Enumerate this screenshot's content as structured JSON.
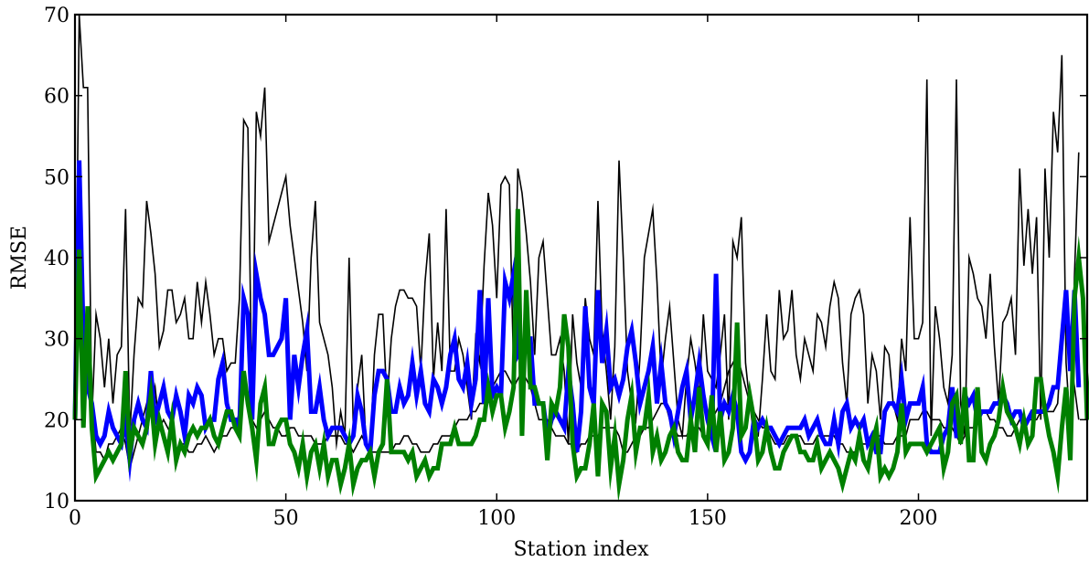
{
  "chart_data": {
    "type": "line",
    "title": "",
    "xlabel": "Station index",
    "ylabel": "RMSE",
    "xlim": [
      0,
      240
    ],
    "ylim": [
      10,
      70
    ],
    "xticks": [
      0,
      50,
      100,
      150,
      200
    ],
    "yticks": [
      10,
      20,
      30,
      40,
      50,
      60,
      70
    ],
    "grid": false,
    "series": [
      {
        "color": "#000000",
        "line_width": 1.6,
        "values": [
          20,
          70,
          61,
          61,
          20,
          33,
          30,
          24,
          30,
          22,
          28,
          29,
          46,
          18,
          28,
          35,
          34,
          47,
          43,
          38,
          29,
          31,
          36,
          36,
          32,
          33,
          35,
          30,
          30,
          37,
          32,
          37,
          33,
          28,
          30,
          30,
          26,
          27,
          27,
          35,
          57,
          56,
          21,
          58,
          55,
          61,
          42,
          44,
          46,
          48,
          50,
          44,
          40,
          36,
          32,
          26,
          40,
          47,
          32,
          30,
          28,
          24,
          17,
          21,
          18,
          40,
          19,
          24,
          28,
          17,
          16,
          28,
          33,
          33,
          22,
          30,
          34,
          36,
          36,
          35,
          35,
          34,
          26,
          37,
          43,
          25,
          32,
          26,
          46,
          26,
          26,
          30,
          28,
          24,
          20,
          30,
          27,
          39,
          48,
          44,
          35,
          49,
          50,
          49,
          26,
          51,
          48,
          43,
          37,
          28,
          40,
          42,
          35,
          28,
          28,
          30,
          26,
          17,
          33,
          27,
          24,
          35,
          30,
          28,
          47,
          31,
          26,
          20,
          29,
          52,
          40,
          26,
          22,
          20,
          28,
          40,
          43,
          46,
          37,
          25,
          30,
          34,
          27,
          20,
          18,
          25,
          30,
          27,
          23,
          33,
          26,
          25,
          24,
          28,
          33,
          20,
          42,
          40,
          45,
          27,
          22,
          18,
          18,
          25,
          33,
          26,
          25,
          36,
          30,
          31,
          36,
          28,
          25,
          30,
          28,
          26,
          33,
          32,
          29,
          34,
          37,
          35,
          27,
          22,
          33,
          35,
          36,
          33,
          22,
          28,
          26,
          20,
          29,
          28,
          22,
          20,
          30,
          26,
          45,
          30,
          30,
          32,
          62,
          18,
          34,
          30,
          24,
          22,
          28,
          62,
          22,
          18,
          40,
          38,
          35,
          34,
          30,
          38,
          29,
          22,
          32,
          33,
          35,
          28,
          51,
          39,
          46,
          38,
          45,
          20,
          51,
          40,
          58,
          53,
          65,
          27,
          19,
          38,
          53
        ]
      },
      {
        "color": "#000000",
        "line_width": 1.6,
        "values": [
          24,
          30,
          28,
          24,
          22,
          16,
          16,
          15,
          17,
          17,
          18,
          19,
          17,
          14,
          16,
          18,
          20,
          22,
          21,
          24,
          19,
          20,
          19,
          18,
          16,
          17,
          17,
          16,
          16,
          17,
          17,
          18,
          17,
          16,
          17,
          18,
          18,
          19,
          19,
          21,
          24,
          22,
          20,
          19,
          20,
          21,
          20,
          19,
          19,
          18,
          18,
          19,
          19,
          18,
          18,
          18,
          18,
          17,
          17,
          17,
          18,
          18,
          18,
          18,
          17,
          17,
          16,
          17,
          18,
          17,
          16,
          16,
          16,
          16,
          16,
          16,
          17,
          17,
          18,
          18,
          17,
          17,
          16,
          16,
          16,
          17,
          17,
          18,
          18,
          18,
          19,
          20,
          20,
          20,
          21,
          21,
          22,
          22,
          23,
          24,
          25,
          26,
          26,
          25,
          24,
          25,
          26,
          25,
          24,
          22,
          20,
          20,
          20,
          19,
          18,
          18,
          18,
          17,
          17,
          16,
          17,
          17,
          18,
          18,
          18,
          19,
          19,
          19,
          19,
          18,
          16,
          16,
          17,
          18,
          18,
          19,
          19,
          20,
          21,
          22,
          22,
          20,
          19,
          18,
          18,
          18,
          19,
          19,
          19,
          18,
          18,
          20,
          21,
          22,
          24,
          26,
          27,
          28,
          26,
          24,
          22,
          21,
          20,
          19,
          19,
          18,
          17,
          17,
          17,
          18,
          18,
          18,
          18,
          17,
          17,
          17,
          18,
          18,
          18,
          18,
          18,
          17,
          17,
          16,
          16,
          16,
          17,
          17,
          17,
          18,
          18,
          18,
          17,
          17,
          17,
          18,
          18,
          18,
          20,
          20,
          20,
          21,
          21,
          20,
          20,
          20,
          19,
          19,
          19,
          18,
          17,
          18,
          19,
          19,
          20,
          21,
          21,
          20,
          20,
          19,
          19,
          18,
          18,
          19,
          20,
          20,
          20,
          20,
          20,
          21,
          21,
          21,
          21,
          22,
          30,
          34,
          28,
          24,
          20
        ]
      },
      {
        "color": "#0000ff",
        "line_width": 5,
        "values": [
          20,
          52,
          30,
          24,
          22,
          18,
          17,
          18,
          21,
          19,
          18,
          17,
          20,
          15,
          20,
          22,
          20,
          19,
          26,
          20,
          22,
          24,
          21,
          20,
          23,
          21,
          18,
          23,
          22,
          24,
          23,
          19,
          20,
          20,
          25,
          27,
          22,
          20,
          20,
          19,
          35,
          33,
          20,
          38,
          35,
          33,
          28,
          28,
          29,
          30,
          35,
          20,
          28,
          24,
          28,
          31,
          21,
          21,
          24,
          20,
          18,
          19,
          19,
          19,
          18,
          17,
          18,
          23,
          21,
          17,
          16,
          23,
          26,
          26,
          25,
          21,
          21,
          24,
          22,
          23,
          27,
          23,
          26,
          22,
          21,
          25,
          24,
          22,
          24,
          28,
          30,
          25,
          24,
          27,
          22,
          25,
          36,
          22,
          35,
          23,
          24,
          23,
          37,
          35,
          38,
          28,
          29,
          30,
          30,
          22,
          22,
          22,
          18,
          20,
          21,
          20,
          19,
          26,
          22,
          16,
          21,
          34,
          24,
          22,
          36,
          27,
          31,
          24,
          25,
          23,
          25,
          29,
          31,
          27,
          22,
          24,
          26,
          29,
          22,
          27,
          22,
          21,
          18,
          21,
          24,
          26,
          20,
          23,
          27,
          23,
          20,
          18,
          38,
          20,
          22,
          21,
          23,
          21,
          16,
          15,
          16,
          20,
          19,
          20,
          19,
          19,
          18,
          17,
          18,
          19,
          19,
          19,
          19,
          20,
          18,
          19,
          20,
          18,
          17,
          17,
          20,
          17,
          21,
          22,
          19,
          20,
          19,
          20,
          17,
          18,
          16,
          16,
          21,
          22,
          22,
          21,
          25,
          20,
          22,
          22,
          22,
          24,
          17,
          16,
          16,
          16,
          18,
          19,
          24,
          18,
          18,
          23,
          22,
          23,
          20,
          21,
          21,
          21,
          22,
          22,
          23,
          22,
          20,
          21,
          21,
          19,
          20,
          21,
          21,
          21,
          21,
          22,
          24,
          24,
          30,
          36,
          26,
          36,
          24
        ]
      },
      {
        "color": "#008000",
        "line_width": 5,
        "values": [
          20,
          41,
          19,
          34,
          19,
          13,
          14,
          15,
          16,
          15,
          16,
          17,
          26,
          16,
          19,
          18,
          17,
          19,
          23,
          17,
          20,
          18,
          16,
          20,
          15,
          17,
          16,
          18,
          19,
          18,
          19,
          19,
          20,
          18,
          17,
          19,
          21,
          21,
          19,
          18,
          26,
          22,
          19,
          15,
          22,
          24,
          17,
          17,
          19,
          20,
          20,
          17,
          16,
          14,
          17,
          13,
          16,
          17,
          14,
          17,
          13,
          15,
          15,
          12,
          14,
          17,
          12,
          14,
          15,
          15,
          16,
          13,
          16,
          17,
          25,
          16,
          16,
          16,
          16,
          15,
          16,
          13,
          14,
          15,
          13,
          14,
          14,
          17,
          17,
          17,
          19,
          17,
          17,
          17,
          17,
          18,
          20,
          20,
          24,
          21,
          23,
          23,
          19,
          21,
          24,
          46,
          18,
          36,
          24,
          24,
          22,
          22,
          15,
          22,
          21,
          24,
          33,
          29,
          17,
          13,
          14,
          14,
          17,
          22,
          13,
          22,
          21,
          14,
          18,
          12,
          15,
          20,
          23,
          16,
          19,
          19,
          23,
          16,
          18,
          15,
          16,
          18,
          19,
          16,
          15,
          15,
          20,
          16,
          24,
          18,
          17,
          23,
          16,
          21,
          15,
          16,
          19,
          32,
          18,
          19,
          23,
          20,
          15,
          16,
          19,
          16,
          14,
          14,
          16,
          17,
          18,
          18,
          16,
          16,
          15,
          15,
          17,
          14,
          15,
          16,
          15,
          14,
          12,
          14,
          16,
          15,
          18,
          15,
          14,
          17,
          19,
          13,
          14,
          13,
          14,
          16,
          22,
          16,
          17,
          17,
          17,
          17,
          16,
          17,
          18,
          19,
          14,
          16,
          22,
          23,
          17,
          24,
          15,
          15,
          24,
          16,
          15,
          17,
          18,
          20,
          24,
          21,
          20,
          19,
          17,
          20,
          17,
          18,
          25,
          25,
          21,
          18,
          16,
          13,
          19,
          24,
          15,
          35,
          40,
          35,
          20,
          26
        ]
      }
    ]
  }
}
